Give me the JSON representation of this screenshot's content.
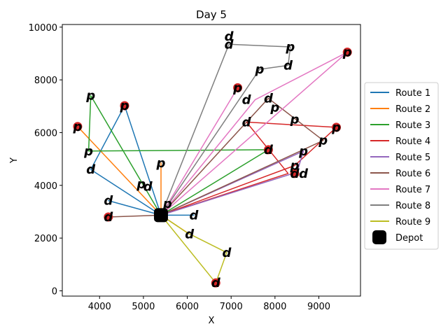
{
  "chart_data": {
    "type": "line",
    "title": "Day 5",
    "xlabel": "X",
    "ylabel": "Y",
    "xlim": [
      3150,
      9950
    ],
    "ylim": [
      -200,
      10100
    ],
    "xticks": [
      4000,
      5000,
      6000,
      7000,
      8000,
      9000
    ],
    "yticks": [
      0,
      2000,
      4000,
      6000,
      8000,
      10000
    ],
    "grid": false,
    "legend_position": "right",
    "depot": {
      "name": "Depot",
      "x": 5400,
      "y": 2870,
      "color": "#000000"
    },
    "series": [
      {
        "name": "Route 1",
        "color": "#1f77b4",
        "points": [
          [
            5400,
            2870
          ],
          [
            4570,
            7020
          ],
          [
            3800,
            4600
          ],
          [
            5400,
            2870
          ],
          [
            4200,
            3420
          ],
          [
            5400,
            2870
          ],
          [
            6150,
            2870
          ],
          [
            5400,
            2870
          ]
        ]
      },
      {
        "name": "Route 2",
        "color": "#ff7f0e",
        "points": [
          [
            5400,
            2870
          ],
          [
            3500,
            6230
          ],
          [
            5400,
            2870
          ],
          [
            5400,
            4850
          ],
          [
            5400,
            2870
          ],
          [
            6050,
            2150
          ],
          [
            5400,
            2870
          ]
        ]
      },
      {
        "name": "Route 3",
        "color": "#2ca02c",
        "points": [
          [
            5400,
            2870
          ],
          [
            3800,
            7400
          ],
          [
            3750,
            5300
          ],
          [
            7850,
            5350
          ],
          [
            5400,
            2870
          ]
        ]
      },
      {
        "name": "Route 4",
        "color": "#d62728",
        "points": [
          [
            5400,
            2870
          ],
          [
            8450,
            4750
          ],
          [
            9400,
            6200
          ],
          [
            7350,
            6400
          ],
          [
            8300,
            4450
          ],
          [
            5400,
            2870
          ]
        ]
      },
      {
        "name": "Route 5",
        "color": "#9467bd",
        "points": [
          [
            5400,
            2870
          ],
          [
            8500,
            4500
          ],
          [
            8650,
            5300
          ],
          [
            5400,
            2870
          ]
        ]
      },
      {
        "name": "Route 6",
        "color": "#8c564b",
        "points": [
          [
            5400,
            2870
          ],
          [
            7850,
            7300
          ],
          [
            9100,
            5700
          ],
          [
            5400,
            2870
          ],
          [
            4200,
            2800
          ],
          [
            5400,
            2870
          ]
        ]
      },
      {
        "name": "Route 7",
        "color": "#e377c2",
        "points": [
          [
            5400,
            2870
          ],
          [
            7150,
            7700
          ],
          [
            5400,
            2870
          ],
          [
            9650,
            9050
          ],
          [
            7550,
            7250
          ],
          [
            5400,
            2870
          ]
        ]
      },
      {
        "name": "Route 8",
        "color": "#7f7f7f",
        "points": [
          [
            5400,
            2870
          ],
          [
            6950,
            9350
          ],
          [
            8350,
            9250
          ],
          [
            8300,
            8550
          ],
          [
            7650,
            8400
          ],
          [
            5400,
            2870
          ]
        ]
      },
      {
        "name": "Route 9",
        "color": "#bcbd22",
        "points": [
          [
            5400,
            2870
          ],
          [
            6000,
            2200
          ],
          [
            6900,
            1450
          ],
          [
            6650,
            300
          ],
          [
            5400,
            2870
          ]
        ]
      }
    ],
    "customers": [
      {
        "x": 3500,
        "y": 6230,
        "label": "p"
      },
      {
        "x": 4570,
        "y": 7020,
        "label": "p"
      },
      {
        "x": 4200,
        "y": 2800,
        "label": "d"
      },
      {
        "x": 7150,
        "y": 7700,
        "label": "p"
      },
      {
        "x": 7850,
        "y": 5350,
        "label": "d"
      },
      {
        "x": 8450,
        "y": 4450,
        "label": "d"
      },
      {
        "x": 9400,
        "y": 6200,
        "label": "p"
      },
      {
        "x": 9650,
        "y": 9050,
        "label": "p"
      },
      {
        "x": 6650,
        "y": 300,
        "label": "d"
      }
    ],
    "node_labels": [
      {
        "x": 3500,
        "y": 6230,
        "text": "p"
      },
      {
        "x": 4570,
        "y": 7020,
        "text": "p"
      },
      {
        "x": 3800,
        "y": 7400,
        "text": "p"
      },
      {
        "x": 3750,
        "y": 5300,
        "text": "p"
      },
      {
        "x": 3800,
        "y": 4600,
        "text": "d"
      },
      {
        "x": 4200,
        "y": 3420,
        "text": "d"
      },
      {
        "x": 4200,
        "y": 2800,
        "text": "d"
      },
      {
        "x": 4950,
        "y": 4050,
        "text": "p"
      },
      {
        "x": 5100,
        "y": 3950,
        "text": "d"
      },
      {
        "x": 5400,
        "y": 4850,
        "text": "p"
      },
      {
        "x": 5550,
        "y": 3300,
        "text": "p"
      },
      {
        "x": 6150,
        "y": 2870,
        "text": "d"
      },
      {
        "x": 6050,
        "y": 2150,
        "text": "d"
      },
      {
        "x": 6900,
        "y": 1450,
        "text": "d"
      },
      {
        "x": 6650,
        "y": 300,
        "text": "d"
      },
      {
        "x": 6950,
        "y": 9350,
        "text": "d"
      },
      {
        "x": 6950,
        "y": 9650,
        "text": "d"
      },
      {
        "x": 8350,
        "y": 9250,
        "text": "p"
      },
      {
        "x": 8300,
        "y": 8550,
        "text": "d"
      },
      {
        "x": 7650,
        "y": 8400,
        "text": "p"
      },
      {
        "x": 7150,
        "y": 7700,
        "text": "p"
      },
      {
        "x": 7350,
        "y": 7250,
        "text": "d"
      },
      {
        "x": 7850,
        "y": 7300,
        "text": "d"
      },
      {
        "x": 8000,
        "y": 6950,
        "text": "p"
      },
      {
        "x": 8450,
        "y": 6500,
        "text": "p"
      },
      {
        "x": 7350,
        "y": 6400,
        "text": "d"
      },
      {
        "x": 9400,
        "y": 6200,
        "text": "p"
      },
      {
        "x": 9100,
        "y": 5700,
        "text": "p"
      },
      {
        "x": 7850,
        "y": 5350,
        "text": "d"
      },
      {
        "x": 8650,
        "y": 5300,
        "text": "p"
      },
      {
        "x": 8450,
        "y": 4750,
        "text": "p"
      },
      {
        "x": 8450,
        "y": 4450,
        "text": "d"
      },
      {
        "x": 8650,
        "y": 4450,
        "text": "d"
      },
      {
        "x": 9650,
        "y": 9050,
        "text": "p"
      }
    ]
  }
}
